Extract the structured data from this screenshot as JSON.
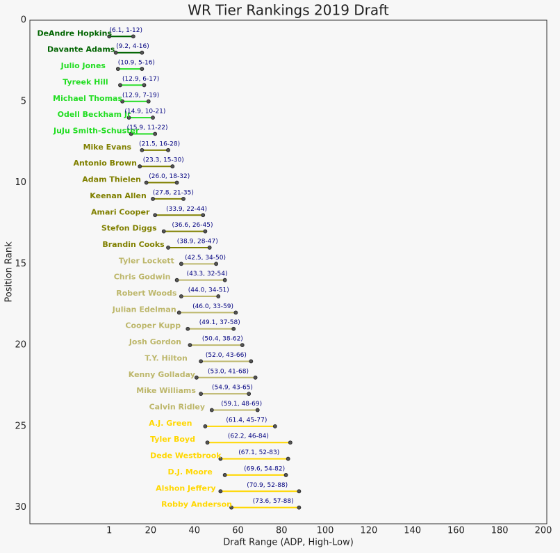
{
  "chart_data": {
    "type": "dumbbell",
    "title": "WR Tier Rankings 2019 Draft",
    "x_label": "Draft Range (ADP, High-Low)",
    "y_label": "Position Rank",
    "categories": [
      "DeAndre Hopkins",
      "Davante Adams",
      "Julio Jones",
      "Tyreek Hill",
      "Michael Thomas",
      "Odell Beckham Jr",
      "JuJu Smith-Schuster",
      "Mike Evans",
      "Antonio Brown",
      "Adam Thielen",
      "Keenan Allen",
      "Amari Cooper",
      "Stefon Diggs",
      "Brandin Cooks",
      "Tyler Lockett",
      "Chris Godwin",
      "Robert Woods",
      "Julian Edelman",
      "Cooper Kupp",
      "Josh Gordon",
      "T.Y. Hilton",
      "Kenny Golladay",
      "Mike Williams",
      "Calvin Ridley",
      "A.J. Green",
      "Tyler Boyd",
      "Dede Westbrook",
      "D.J. Moore",
      "Alshon Jeffery",
      "Robby Anderson"
    ],
    "y": [
      1,
      2,
      3,
      4,
      5,
      6,
      7,
      8,
      9,
      10,
      11,
      12,
      13,
      14,
      15,
      16,
      17,
      18,
      19,
      20,
      21,
      22,
      23,
      24,
      25,
      26,
      27,
      28,
      29,
      30
    ],
    "adp": [
      6.1,
      9.2,
      10.9,
      12.9,
      12.9,
      14.9,
      15.9,
      21.5,
      23.3,
      26.0,
      27.8,
      33.9,
      36.6,
      38.9,
      42.5,
      43.3,
      44.0,
      46.0,
      49.1,
      50.4,
      52.0,
      53.0,
      54.9,
      59.1,
      61.4,
      62.2,
      67.1,
      69.6,
      70.9,
      73.6
    ],
    "low": [
      1,
      4,
      5,
      6,
      7,
      10,
      11,
      16,
      15,
      18,
      21,
      22,
      26,
      28,
      34,
      32,
      34,
      33,
      37,
      38,
      43,
      41,
      43,
      48,
      45,
      46,
      52,
      54,
      52,
      57
    ],
    "high": [
      12,
      16,
      16,
      17,
      19,
      21,
      22,
      28,
      30,
      32,
      35,
      44,
      45,
      47,
      50,
      54,
      51,
      59,
      58,
      62,
      66,
      68,
      65,
      69,
      77,
      84,
      83,
      82,
      88,
      88
    ],
    "value_labels": [
      "(6.1, 1-12)",
      "(9.2, 4-16)",
      "(10.9, 5-16)",
      "(12.9, 6-17)",
      "(12.9, 7-19)",
      "(14.9, 10-21)",
      "(15.9, 11-22)",
      "(21.5, 16-28)",
      "(23.3, 15-30)",
      "(26.0, 18-32)",
      "(27.8, 21-35)",
      "(33.9, 22-44)",
      "(36.6, 26-45)",
      "(38.9, 28-47)",
      "(42.5, 34-50)",
      "(43.3, 32-54)",
      "(44.0, 34-51)",
      "(46.0, 33-59)",
      "(49.1, 37-58)",
      "(50.4, 38-62)",
      "(52.0, 43-66)",
      "(53.0, 41-68)",
      "(54.9, 43-65)",
      "(59.1, 48-69)",
      "(61.4, 45-77)",
      "(62.2, 46-84)",
      "(67.1, 52-83)",
      "(69.6, 54-82)",
      "(70.9, 52-88)",
      "(73.6, 57-88)"
    ],
    "colors": [
      "#006400",
      "#006400",
      "#22dd22",
      "#22dd22",
      "#22dd22",
      "#22dd22",
      "#22dd22",
      "#808000",
      "#808000",
      "#808000",
      "#808000",
      "#808000",
      "#808000",
      "#808000",
      "#bdb76b",
      "#bdb76b",
      "#bdb76b",
      "#bdb76b",
      "#bdb76b",
      "#bdb76b",
      "#bdb76b",
      "#bdb76b",
      "#bdb76b",
      "#bdb76b",
      "#ffd700",
      "#ffd700",
      "#ffd700",
      "#ffd700",
      "#ffd700",
      "#ffd700"
    ],
    "label_color": "#000080",
    "xlim": [
      -35.4,
      201.6
    ],
    "xticks": [
      1,
      20,
      40,
      60,
      80,
      100,
      120,
      140,
      160,
      180,
      200
    ],
    "ylim": [
      31,
      0
    ],
    "yticks": [
      0,
      5,
      10,
      15,
      20,
      25,
      30
    ]
  }
}
